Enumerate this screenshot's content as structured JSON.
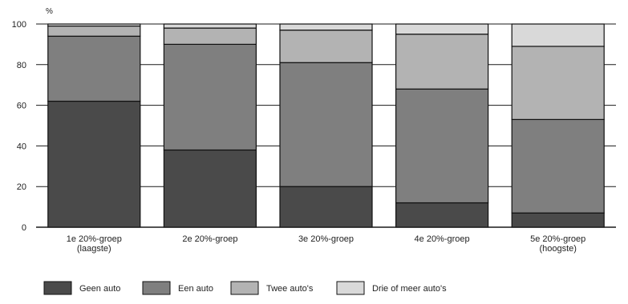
{
  "chart_data": {
    "type": "bar",
    "stacked": true,
    "unit_label": "%",
    "ylim": [
      0,
      100
    ],
    "yticks": [
      0,
      20,
      40,
      60,
      80,
      100
    ],
    "grid": true,
    "legend_position": "bottom-left",
    "categories": [
      [
        "1e 20%-groep",
        "(laagste)"
      ],
      [
        "2e 20%-groep"
      ],
      [
        "3e 20%-groep"
      ],
      [
        "4e 20%-groep"
      ],
      [
        "5e 20%-groep",
        "(hoogste)"
      ]
    ],
    "series": [
      {
        "name": "Geen auto",
        "color": "#4a4a4a",
        "values": [
          62,
          38,
          20,
          12,
          7
        ]
      },
      {
        "name": "Een auto",
        "color": "#7f7f7f",
        "values": [
          32,
          52,
          61,
          56,
          46
        ]
      },
      {
        "name": "Twee auto's",
        "color": "#b3b3b3",
        "values": [
          5,
          8,
          16,
          27,
          36
        ]
      },
      {
        "name": "Drie of meer auto's",
        "color": "#d9d9d9",
        "values": [
          1,
          2,
          3,
          5,
          11
        ]
      }
    ]
  }
}
